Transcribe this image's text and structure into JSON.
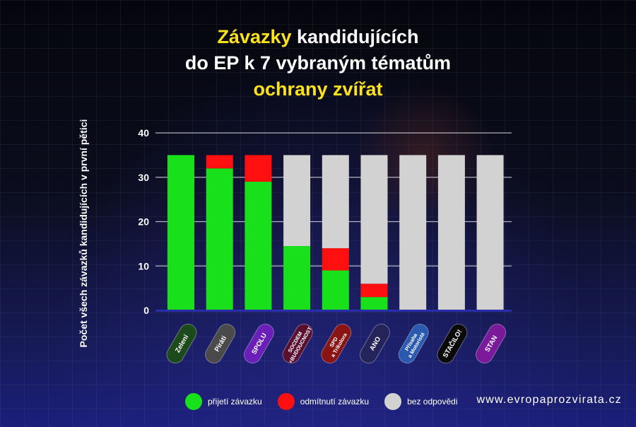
{
  "title": {
    "part1_highlight": "Závazky",
    "part1_rest": " kandidujících",
    "line2": "do EP k 7 vybraným tématům",
    "line3_highlight": "ochrany zvířat"
  },
  "website": "www.evropaprozvirata.cz",
  "colors": {
    "accepted": "#18e01a",
    "rejected": "#ff0f0f",
    "no_answer": "#d2d2d2",
    "title_highlight": "#ffe21a",
    "baseline": "#2a2ea8"
  },
  "chart_data": {
    "type": "bar",
    "stacked": true,
    "title": "Závazky kandidujících do EP k 7 vybraným tématům ochrany zvířat",
    "xlabel": "",
    "ylabel": "Počet všech závazků kandidujících v první pětici",
    "ylim": [
      0,
      40
    ],
    "yticks": [
      0,
      10,
      20,
      30,
      40
    ],
    "grid": true,
    "legend_position": "bottom",
    "categories": [
      "Zelení",
      "Piráti",
      "SPOLU",
      "SOCDEM + BUDOUCNOST",
      "SPD a Trikolora",
      "ANO",
      "Přísaha a Motoristé",
      "STAČILO!",
      "STAN"
    ],
    "category_colors": [
      "#1d4a1a",
      "#4a4a4a",
      "#6a1fb8",
      "#5a0f2f",
      "#8a1414",
      "#24245a",
      "#2a5ab0",
      "#0a0a0a",
      "#7a1a9a"
    ],
    "series": [
      {
        "name": "přijetí závazku",
        "color": "#18e01a",
        "values": [
          35,
          32,
          29,
          14.5,
          9,
          3,
          0,
          0,
          0
        ]
      },
      {
        "name": "odmítnutí závazku",
        "color": "#ff0f0f",
        "values": [
          0,
          3,
          6,
          0,
          5,
          3,
          0,
          0,
          0
        ]
      },
      {
        "name": "bez odpovědi",
        "color": "#d2d2d2",
        "values": [
          0,
          0,
          0,
          20.5,
          21,
          29,
          35,
          35,
          35
        ]
      }
    ]
  }
}
